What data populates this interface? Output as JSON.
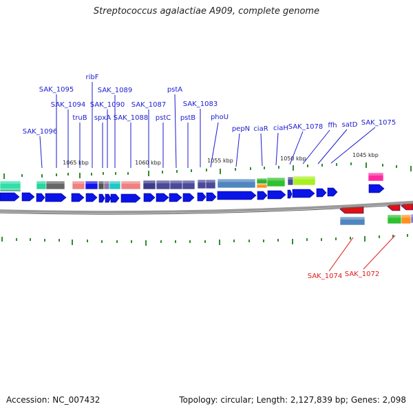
{
  "title": "Streptococcus agalactiae A909, complete genome",
  "footer": {
    "accession": "Accession: NC_007432",
    "summary": "Topology: circular; Length: 2,127,839 bp; Genes: 2,098"
  },
  "colors": {
    "label_forward": "#1a1ad0",
    "label_reverse": "#e01818",
    "cds_arrow": "#0a14e6",
    "backbone": "#808080",
    "tick": "#2e8b2e"
  },
  "scale_labels": [
    "1065 kbp",
    "1060 kbp",
    "1055 kbp",
    "1050 kbp",
    "1045 kbp"
  ],
  "forward_genes": [
    "SAK_1096",
    "SAK_1095",
    "SAK_1094",
    "truB",
    "ribF",
    "spxA",
    "SAK_1090",
    "SAK_1089",
    "SAK_1088",
    "SAK_1087",
    "pstC",
    "pstA",
    "pstB",
    "SAK_1083",
    "phoU",
    "pepN",
    "ciaR",
    "ciaH",
    "SAK_1078",
    "ffh",
    "satD",
    "SAK_1075"
  ],
  "reverse_genes": [
    "SAK_1074",
    "SAK_1072"
  ]
}
